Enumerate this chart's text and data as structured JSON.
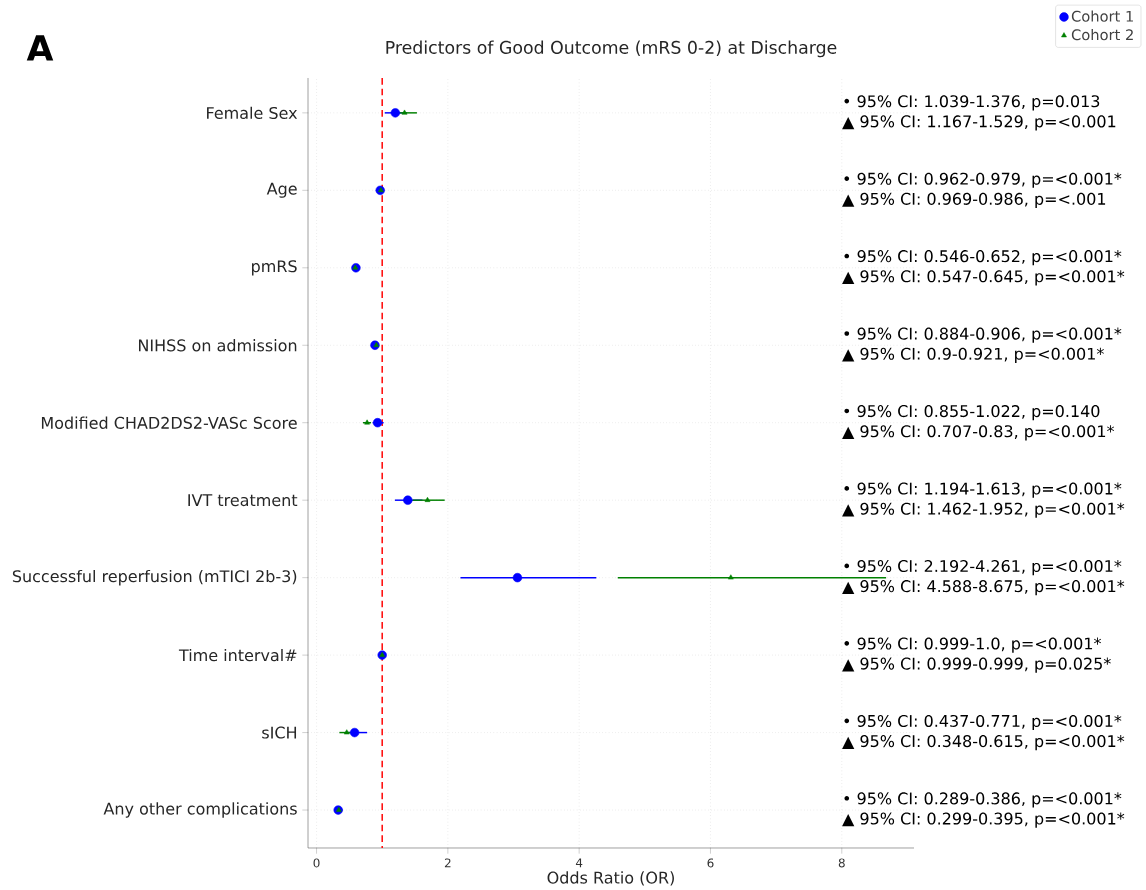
{
  "chart_data": {
    "type": "scatter",
    "orientation": "horizontal",
    "title": "Predictors of Good Outcome (mRS 0-2) at Discharge",
    "xlabel": "Odds Ratio (OR)",
    "categories": [
      "Female Sex",
      "Age",
      "pmRS",
      "NIHSS on admission",
      "Modified CHAD2DS2-VASc Score",
      "IVT treatment",
      "Successful reperfusion (mTICI 2b-3)",
      "Time interval#",
      "sICH",
      "Any other complications"
    ],
    "series": [
      {
        "name": "Cohort 1",
        "color": "#0000ff",
        "marker": "circle",
        "values": [
          1.2,
          0.97,
          0.6,
          0.89,
          0.93,
          1.39,
          3.06,
          1.0,
          0.58,
          0.33
        ],
        "errors": [
          [
            1.039,
            1.376
          ],
          [
            0.962,
            0.979
          ],
          [
            0.546,
            0.652
          ],
          [
            0.884,
            0.906
          ],
          [
            0.855,
            1.022
          ],
          [
            1.194,
            1.613
          ],
          [
            2.192,
            4.261
          ],
          null,
          [
            0.437,
            0.771
          ],
          [
            0.289,
            0.386
          ]
        ]
      },
      {
        "name": "Cohort 2",
        "color": "#008000",
        "marker": "triangle",
        "values": [
          1.34,
          0.98,
          0.59,
          0.91,
          0.77,
          1.69,
          6.31,
          1.0,
          0.46,
          0.34
        ],
        "errors": [
          [
            1.167,
            1.529
          ],
          [
            0.969,
            0.986
          ],
          [
            0.547,
            0.645
          ],
          [
            0.9,
            0.921
          ],
          [
            0.707,
            0.83
          ],
          [
            1.462,
            1.952
          ],
          [
            4.588,
            8.675
          ],
          [
            0.999,
            0.999
          ],
          [
            0.348,
            0.615
          ],
          [
            0.299,
            0.395
          ]
        ]
      }
    ],
    "xlim": [
      -0.13,
      9.1
    ],
    "xticks": [
      0,
      2,
      4,
      6,
      8
    ],
    "grid": true,
    "legend": "top right",
    "ref_lines": [
      {
        "axis": "x",
        "value": 1,
        "color": "#ff0000",
        "line_style": "dashed"
      }
    ],
    "annotations": [
      "A",
      "• 95% CI: 1.039-1.376, p=0.013",
      "▲ 95% CI: 1.167-1.529, p=<0.001",
      "• 95% CI: 0.962-0.979, p=<0.001*",
      "▲ 95% CI: 0.969-0.986, p=<.001",
      "• 95% CI: 0.546-0.652, p=<0.001*",
      "▲ 95% CI: 0.547-0.645, p=<0.001*",
      "• 95% CI: 0.884-0.906, p=<0.001*",
      "▲ 95% CI: 0.9-0.921, p=<0.001*",
      "• 95% CI: 0.855-1.022, p=0.140",
      "▲ 95% CI: 0.707-0.83, p=<0.001*",
      "• 95% CI: 1.194-1.613, p=<0.001*",
      "▲ 95% CI: 1.462-1.952, p=<0.001*",
      "• 95% CI: 2.192-4.261, p=<0.001*",
      "▲ 95% CI: 4.588-8.675, p=<0.001*",
      "• 95% CI: 0.999-1.0, p=<0.001*",
      "▲ 95% CI: 0.999-0.999, p=0.025*",
      "• 95% CI: 0.437-0.771, p=<0.001*",
      "▲ 95% CI: 0.348-0.615, p=<0.001*",
      "• 95% CI: 0.289-0.386, p=<0.001*",
      "▲ 95% CI: 0.299-0.395, p=<0.001*"
    ]
  }
}
